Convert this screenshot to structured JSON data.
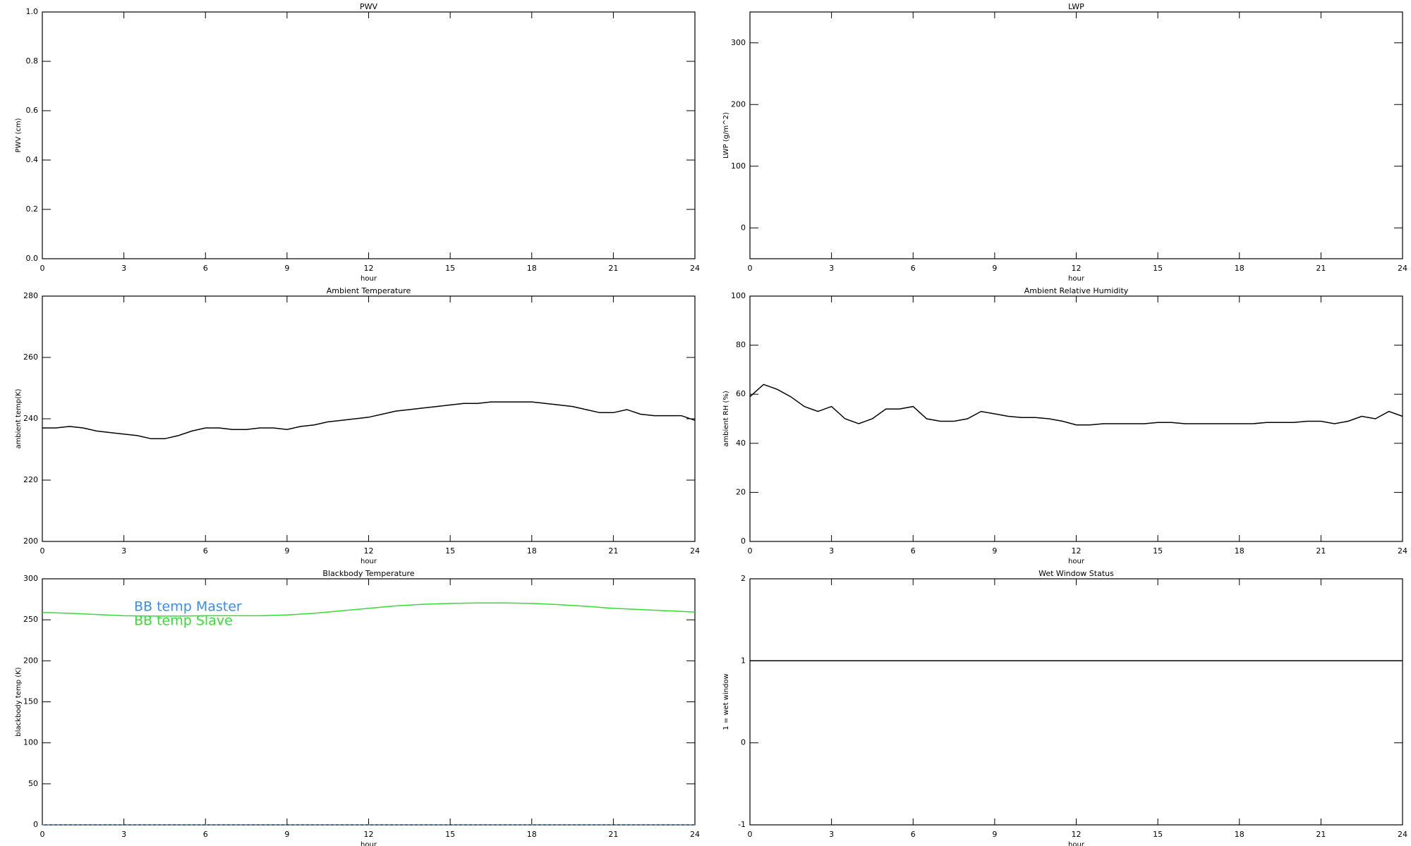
{
  "chart_data": [
    {
      "type": "line",
      "title": "PWV",
      "xlabel": "hour",
      "ylabel": "PWV (cm)",
      "xlim": [
        0,
        24
      ],
      "xticks": [
        0,
        3,
        6,
        9,
        12,
        15,
        18,
        21,
        24
      ],
      "ylim": [
        0,
        1
      ],
      "yticks": [
        {
          "value": 0,
          "label": "0.0"
        },
        0.2,
        0.4,
        0.6,
        0.8,
        {
          "value": 1,
          "label": "1.0"
        }
      ],
      "x": [],
      "series": []
    },
    {
      "type": "line",
      "title": "LWP",
      "xlabel": "hour",
      "ylabel": "LWP (g/m^2)",
      "xlim": [
        0,
        24
      ],
      "xticks": [
        0,
        3,
        6,
        9,
        12,
        15,
        18,
        21,
        24
      ],
      "ylim": [
        -50,
        350
      ],
      "yticks": [
        0,
        100,
        200,
        300
      ],
      "x": [],
      "series": []
    },
    {
      "type": "line",
      "title": "Ambient Temperature",
      "xlabel": "hour",
      "ylabel": "ambient temp(K)",
      "xlim": [
        0,
        24
      ],
      "xticks": [
        0,
        3,
        6,
        9,
        12,
        15,
        18,
        21,
        24
      ],
      "ylim": [
        200,
        280
      ],
      "yticks": [
        200,
        220,
        240,
        260,
        280
      ],
      "x": [
        0,
        0.5,
        1,
        1.5,
        2,
        2.5,
        3,
        3.5,
        4,
        4.5,
        5,
        5.5,
        6,
        6.5,
        7,
        7.5,
        8,
        8.5,
        9,
        9.5,
        10,
        10.5,
        11,
        11.5,
        12,
        12.5,
        13,
        13.5,
        14,
        14.5,
        15,
        15.5,
        16,
        16.5,
        17,
        17.5,
        18,
        18.5,
        19,
        19.5,
        20,
        20.5,
        21,
        21.5,
        22,
        22.5,
        23,
        23.5,
        24
      ],
      "series": [
        {
          "color": "#000000",
          "linestyle": "solid",
          "values": [
            237,
            237,
            237.5,
            237,
            236,
            235.5,
            235,
            234.5,
            233.5,
            233.5,
            234.5,
            236,
            237,
            237,
            236.5,
            236.5,
            237,
            237,
            236.5,
            237.5,
            238,
            239,
            239.5,
            240,
            240.5,
            241.5,
            242.5,
            243,
            243.5,
            244,
            244.5,
            245,
            245,
            245.5,
            245.5,
            245.5,
            245.5,
            245,
            244.5,
            244,
            243,
            242,
            242,
            243,
            241.5,
            241,
            241,
            241,
            239.5
          ]
        }
      ]
    },
    {
      "type": "line",
      "title": "Ambient Relative Humidity",
      "xlabel": "hour",
      "ylabel": "ambient RH (%)",
      "xlim": [
        0,
        24
      ],
      "xticks": [
        0,
        3,
        6,
        9,
        12,
        15,
        18,
        21,
        24
      ],
      "ylim": [
        0,
        100
      ],
      "yticks": [
        0,
        20,
        40,
        60,
        80,
        100
      ],
      "x": [
        0,
        0.5,
        1,
        1.5,
        2,
        2.5,
        3,
        3.5,
        4,
        4.5,
        5,
        5.5,
        6,
        6.5,
        7,
        7.5,
        8,
        8.5,
        9,
        9.5,
        10,
        10.5,
        11,
        11.5,
        12,
        12.5,
        13,
        13.5,
        14,
        14.5,
        15,
        15.5,
        16,
        16.5,
        17,
        17.5,
        18,
        18.5,
        19,
        19.5,
        20,
        20.5,
        21,
        21.5,
        22,
        22.5,
        23,
        23.5,
        24
      ],
      "series": [
        {
          "color": "#000000",
          "linestyle": "solid",
          "values": [
            59,
            64,
            62,
            59,
            55,
            53,
            55,
            50,
            48,
            50,
            54,
            54,
            55,
            50,
            49,
            49,
            50,
            53,
            52,
            51,
            50.5,
            50.5,
            50,
            49,
            47.5,
            47.5,
            48,
            48,
            48,
            48,
            48.5,
            48.5,
            48,
            48,
            48,
            48,
            48,
            48,
            48.5,
            48.5,
            48.5,
            49,
            49,
            48,
            49,
            51,
            50,
            53,
            51
          ]
        }
      ]
    },
    {
      "type": "line",
      "title": "Blackbody Temperature",
      "xlabel": "hour",
      "ylabel": "blackbody temp (K)",
      "xlim": [
        0,
        24
      ],
      "xticks": [
        0,
        3,
        6,
        9,
        12,
        15,
        18,
        21,
        24
      ],
      "ylim": [
        0,
        300
      ],
      "yticks": [
        0,
        50,
        100,
        150,
        200,
        250,
        300
      ],
      "legend": "upper left",
      "x": [
        0,
        1,
        2,
        3,
        4,
        5,
        6,
        7,
        8,
        9,
        10,
        11,
        12,
        13,
        14,
        15,
        16,
        17,
        18,
        19,
        20,
        21,
        22,
        23,
        24
      ],
      "series": [
        {
          "name": "BB temp Master",
          "color": "#3a8ee6",
          "linestyle": "dotted",
          "values": [
            0,
            0,
            0,
            0,
            0,
            0,
            0,
            0,
            0,
            0,
            0,
            0,
            0,
            0,
            0,
            0,
            0,
            0,
            0,
            0,
            0,
            0,
            0,
            0,
            0
          ]
        },
        {
          "name": "BB temp Slave",
          "color": "#33dd33",
          "linestyle": "solid",
          "values": [
            259,
            258,
            256.5,
            255,
            254.5,
            254.5,
            255,
            255,
            255,
            256,
            258,
            261,
            264,
            267,
            269,
            270,
            270.5,
            270.5,
            270,
            268.5,
            266.5,
            264,
            262.5,
            261,
            259.5
          ]
        }
      ]
    },
    {
      "type": "line",
      "title": "Wet Window Status",
      "xlabel": "hour",
      "ylabel": "1 = wet window",
      "xlim": [
        0,
        24
      ],
      "xticks": [
        0,
        3,
        6,
        9,
        12,
        15,
        18,
        21,
        24
      ],
      "ylim": [
        -1,
        2
      ],
      "yticks": [
        -1,
        0,
        1,
        2
      ],
      "x": [
        0,
        24
      ],
      "series": [
        {
          "color": "#000000",
          "linestyle": "solid",
          "values": [
            1,
            1
          ]
        }
      ]
    }
  ]
}
